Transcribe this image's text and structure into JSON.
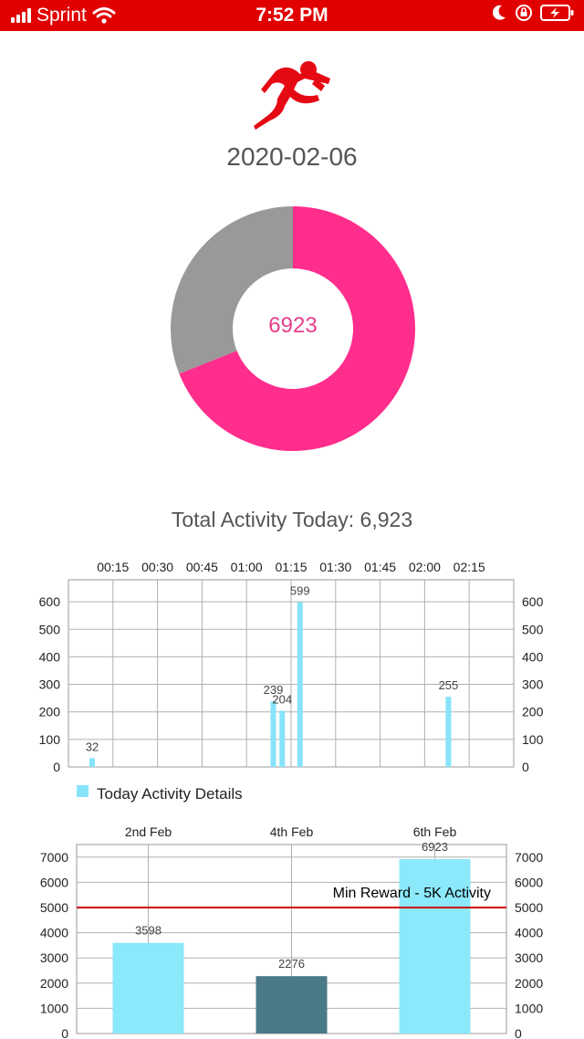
{
  "status_bar": {
    "carrier": "Sprint",
    "time": "7:52 PM",
    "background": "#e10000"
  },
  "header": {
    "logo_icon": "running-man-icon",
    "date": "2020-02-06"
  },
  "summary": {
    "donut_value": "6923",
    "donut_colors": {
      "progress": "#ff2d8c",
      "remainder": "#999999"
    },
    "donut_progress_fraction": 0.69,
    "total_label": "Total Activity Today: 6,923"
  },
  "chart_data": [
    {
      "type": "bar",
      "x_tick_labels": [
        "00:15",
        "00:30",
        "00:45",
        "01:00",
        "01:15",
        "01:30",
        "01:45",
        "02:00",
        "02:15"
      ],
      "y_ticks": [
        0,
        100,
        200,
        300,
        400,
        500,
        600
      ],
      "ylim": [
        0,
        680
      ],
      "xlim_minutes": [
        0,
        150
      ],
      "bars": [
        {
          "time": "00:08",
          "minutes": 8,
          "value": 32,
          "label": "32"
        },
        {
          "time": "01:09",
          "minutes": 69,
          "value": 239,
          "label": "239"
        },
        {
          "time": "01:12",
          "minutes": 72,
          "value": 204,
          "label": "204"
        },
        {
          "time": "01:18",
          "minutes": 78,
          "value": 599,
          "label": "599"
        },
        {
          "time": "02:08",
          "minutes": 128,
          "value": 255,
          "label": "255"
        }
      ],
      "legend": "Today Activity Details",
      "bar_color": "#87e3fa",
      "grid": true,
      "legend_position": "bottom-left"
    },
    {
      "type": "bar",
      "categories": [
        "2nd Feb",
        "4th Feb",
        "6th Feb"
      ],
      "values": [
        3598,
        2276,
        6923
      ],
      "value_labels": [
        "3598",
        "2276",
        "6923"
      ],
      "bar_colors": [
        "#8ce8fb",
        "#4a7a87",
        "#8ce8fb"
      ],
      "y_ticks": [
        0,
        1000,
        2000,
        3000,
        4000,
        5000,
        6000,
        7000
      ],
      "ylim": [
        0,
        7500
      ],
      "threshold": {
        "value": 5000,
        "label": "Min Reward - 5K Activity",
        "color": "#cc0000"
      },
      "grid": true
    }
  ]
}
